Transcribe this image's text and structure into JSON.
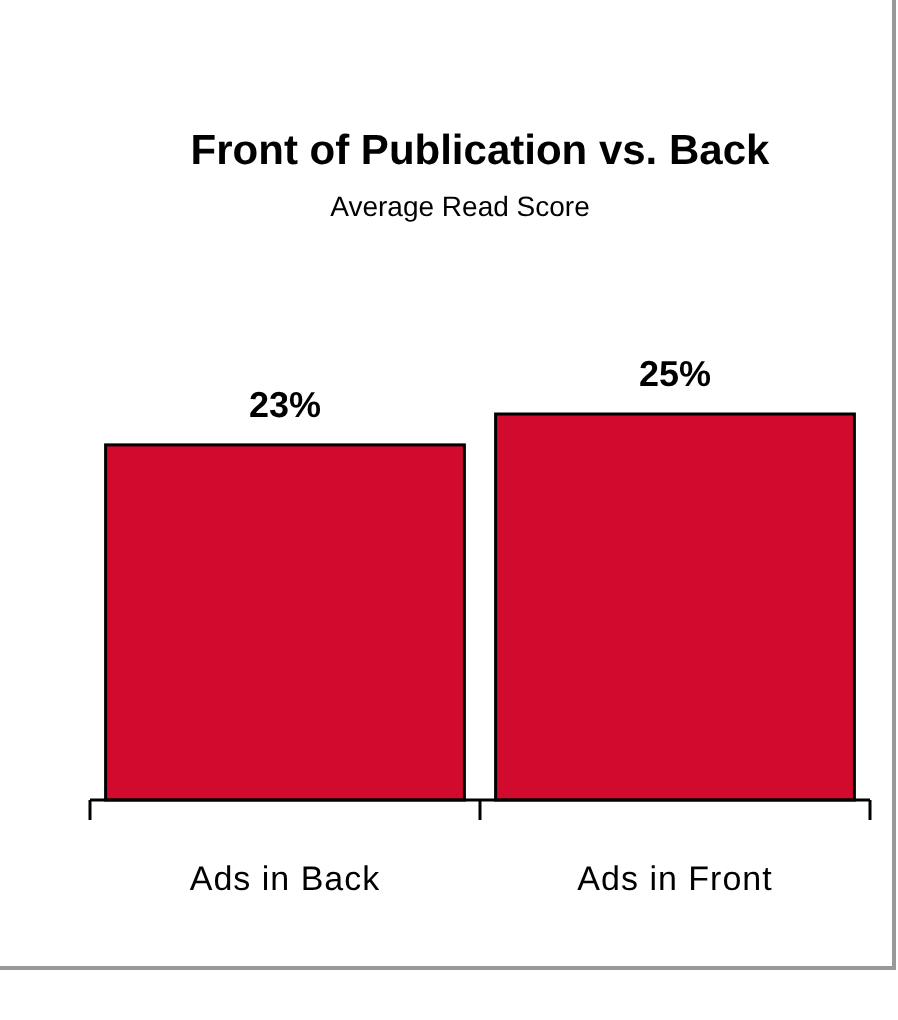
{
  "chart_data": {
    "type": "bar",
    "title": "Front of Publication vs. Back",
    "subtitle": "Average Read Score",
    "categories": [
      "Ads in Back",
      "Ads in Front"
    ],
    "values": [
      23,
      25
    ],
    "color": "#d20a2e",
    "value_labels": [
      "23%",
      "25%"
    ]
  }
}
